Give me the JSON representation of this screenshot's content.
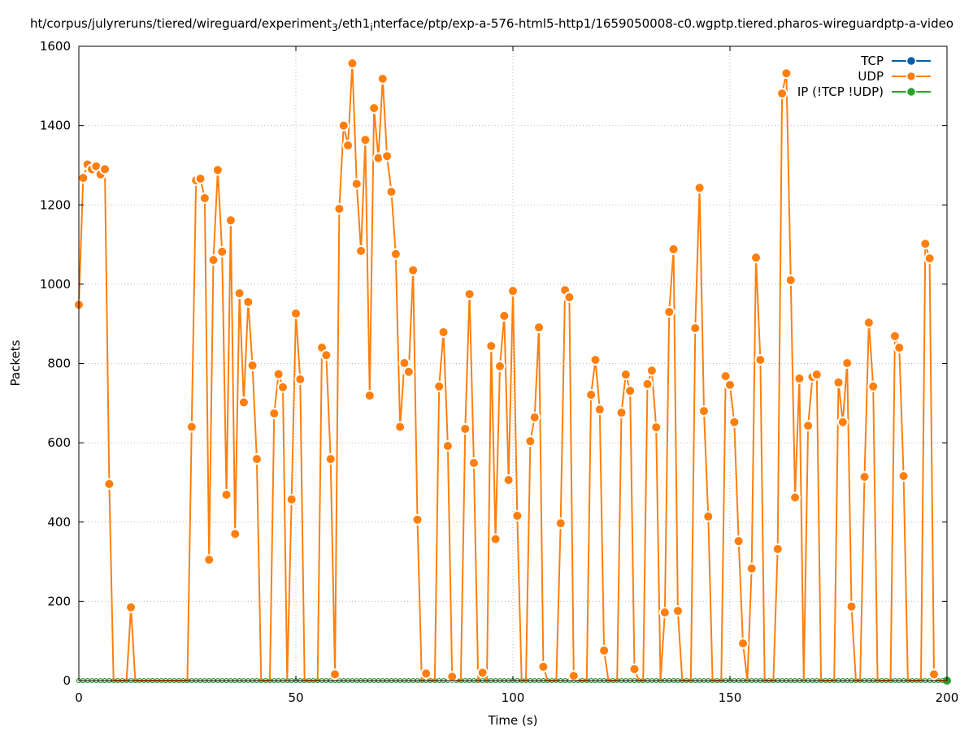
{
  "chart_data": {
    "type": "line",
    "title": "ht/corpus/julyreruns/tiered/wireguard/experiment",
    "title_sub": "3",
    "title_mid": "/eth1",
    "title_sub2": "i",
    "title_rest": "nterface/ptp/exp-a-576-html5-http1/1659050008-c0.wgptp.tiered.pharos-wireguardptp-a-video",
    "xlabel": "Time (s)",
    "ylabel": "Packets",
    "xlim": [
      0,
      200
    ],
    "ylim": [
      0,
      1600
    ],
    "xticks": [
      0,
      50,
      100,
      150,
      200
    ],
    "yticks": [
      0,
      200,
      400,
      600,
      800,
      1000,
      1200,
      1400,
      1600
    ],
    "grid": true,
    "legend_position": "top-right",
    "series": [
      {
        "name": "TCP",
        "color": "#0060ad",
        "values": []
      },
      {
        "name": "UDP",
        "color": "#ff7f0e",
        "values": [
          948,
          1268,
          1302,
          1290,
          1297,
          1277,
          1290,
          496,
          0,
          0,
          0,
          0,
          185,
          0,
          0,
          0,
          0,
          0,
          0,
          0,
          0,
          0,
          0,
          0,
          0,
          0,
          640,
          1262,
          1266,
          1217,
          305,
          1061,
          1288,
          1082,
          469,
          1161,
          370,
          977,
          702,
          955,
          795,
          559,
          0,
          0,
          0,
          674,
          773,
          740,
          0,
          457,
          926,
          760,
          0,
          0,
          0,
          0,
          840,
          821,
          559,
          16,
          1190,
          1400,
          1350,
          1557,
          1253,
          1084,
          1364,
          719,
          1444,
          1318,
          1518,
          1323,
          1233,
          1076,
          640,
          801,
          779,
          1035,
          406,
          0,
          18,
          0,
          0,
          742,
          879,
          592,
          10,
          0,
          0,
          635,
          975,
          549,
          0,
          20,
          0,
          844,
          357,
          793,
          920,
          506,
          983,
          416,
          0,
          0,
          604,
          664,
          891,
          35,
          0,
          0,
          0,
          397,
          985,
          967,
          12,
          0,
          0,
          0,
          721,
          809,
          684,
          76,
          0,
          0,
          0,
          676,
          772,
          731,
          29,
          0,
          0,
          748,
          782,
          639,
          0,
          172,
          930,
          1088,
          176,
          0,
          0,
          0,
          889,
          1243,
          680,
          414,
          0,
          0,
          0,
          768,
          746,
          652,
          352,
          94,
          0,
          283,
          1067,
          809,
          0,
          0,
          0,
          332,
          1481,
          1532,
          1010,
          462,
          762,
          0,
          643,
          766,
          772,
          0,
          0,
          0,
          0,
          752,
          652,
          801,
          187,
          0,
          0,
          514,
          903,
          742,
          0,
          0,
          0,
          0,
          869,
          840,
          516,
          0,
          0,
          0,
          0,
          1102,
          1065,
          16,
          0,
          0,
          0
        ]
      },
      {
        "name": "IP (!TCP  !UDP)",
        "color": "#2ca02c",
        "values": [
          0,
          0,
          0,
          0,
          0,
          0,
          0,
          0,
          0,
          0,
          0,
          0,
          0,
          0,
          0,
          0,
          0,
          0,
          0,
          0,
          0,
          0,
          0,
          0,
          0,
          0,
          0,
          0,
          0,
          0,
          0,
          0,
          0,
          0,
          0,
          0,
          0,
          0,
          0,
          0,
          0,
          0,
          0,
          0,
          0,
          0,
          0,
          0,
          0,
          0,
          0,
          0,
          0,
          0,
          0,
          0,
          0,
          0,
          0,
          0,
          0,
          0,
          0,
          0,
          0,
          0,
          0,
          0,
          0,
          0,
          0,
          0,
          0,
          0,
          0,
          0,
          0,
          0,
          0,
          0,
          0,
          0,
          0,
          0,
          0,
          0,
          0,
          0,
          0,
          0,
          0,
          0,
          0,
          0,
          0,
          0,
          0,
          0,
          0,
          0,
          0,
          0,
          0,
          0,
          0,
          0,
          0,
          0,
          0,
          0,
          0,
          0,
          0,
          0,
          0,
          0,
          0,
          0,
          0,
          0,
          0,
          0,
          0,
          0,
          0,
          0,
          0,
          0,
          0,
          0,
          0,
          0,
          0,
          0,
          0,
          0,
          0,
          0,
          0,
          0,
          0,
          0,
          0,
          0,
          0,
          0,
          0,
          0,
          0,
          0,
          0,
          0,
          0,
          0,
          0,
          0,
          0,
          0,
          0,
          0,
          0,
          0,
          0,
          0,
          0,
          0,
          0,
          0,
          0,
          0,
          0,
          0,
          0,
          0,
          0,
          0,
          0,
          0,
          0,
          0,
          0,
          0,
          0,
          0,
          0,
          0,
          0,
          0,
          0,
          0,
          0,
          0,
          0,
          0,
          0,
          0,
          0,
          0,
          0,
          0,
          0
        ]
      }
    ]
  }
}
